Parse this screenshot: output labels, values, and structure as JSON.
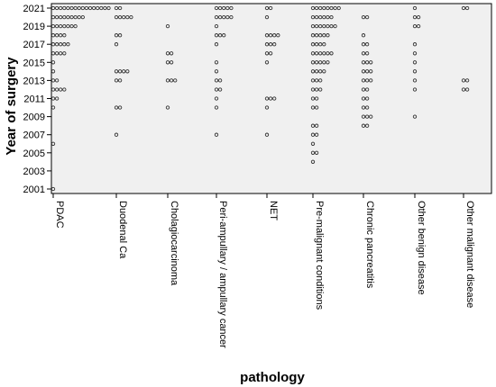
{
  "chart_data": {
    "type": "scatter",
    "subtype": "dot-plot",
    "xlabel": "pathology",
    "ylabel": "Year of surgery",
    "categories": [
      "PDAC",
      "Duodenal Ca",
      "Cholagiocarcinoma",
      "Peri-ampullary / ampullary cancer",
      "NET",
      "Pre-malignant conditions",
      "Chronic pancreatitis",
      "Other benign disease",
      "Other malignant disease"
    ],
    "y_ticks": [
      "2001",
      "2003",
      "2005",
      "2007",
      "2009",
      "2011",
      "2013",
      "2015",
      "2017",
      "2019",
      "2021"
    ],
    "ylim": [
      2000.5,
      2021.5
    ],
    "grid": false,
    "plot_background": "#f0f0f0",
    "marker_color": "#333333",
    "series": [
      {
        "category": "PDAC",
        "points": [
          {
            "year": 2021,
            "count": 16
          },
          {
            "year": 2020,
            "count": 9
          },
          {
            "year": 2019,
            "count": 7
          },
          {
            "year": 2018,
            "count": 4
          },
          {
            "year": 2017,
            "count": 5
          },
          {
            "year": 2016,
            "count": 4
          },
          {
            "year": 2015,
            "count": 1
          },
          {
            "year": 2014,
            "count": 1
          },
          {
            "year": 2013,
            "count": 2
          },
          {
            "year": 2012,
            "count": 4
          },
          {
            "year": 2011,
            "count": 2
          },
          {
            "year": 2010,
            "count": 1
          },
          {
            "year": 2006,
            "count": 1
          },
          {
            "year": 2001,
            "count": 1
          }
        ]
      },
      {
        "category": "Duodenal Ca",
        "points": [
          {
            "year": 2021,
            "count": 2
          },
          {
            "year": 2020,
            "count": 5
          },
          {
            "year": 2018,
            "count": 2
          },
          {
            "year": 2017,
            "count": 1
          },
          {
            "year": 2014,
            "count": 4
          },
          {
            "year": 2013,
            "count": 2
          },
          {
            "year": 2010,
            "count": 2
          },
          {
            "year": 2007,
            "count": 1
          }
        ]
      },
      {
        "category": "Cholagiocarcinoma",
        "points": [
          {
            "year": 2019,
            "count": 1
          },
          {
            "year": 2016,
            "count": 2
          },
          {
            "year": 2015,
            "count": 2
          },
          {
            "year": 2013,
            "count": 3
          },
          {
            "year": 2010,
            "count": 1
          }
        ]
      },
      {
        "category": "Peri-ampullary / ampullary cancer",
        "points": [
          {
            "year": 2021,
            "count": 5
          },
          {
            "year": 2020,
            "count": 5
          },
          {
            "year": 2019,
            "count": 1
          },
          {
            "year": 2018,
            "count": 3
          },
          {
            "year": 2017,
            "count": 1
          },
          {
            "year": 2015,
            "count": 1
          },
          {
            "year": 2014,
            "count": 1
          },
          {
            "year": 2013,
            "count": 2
          },
          {
            "year": 2012,
            "count": 2
          },
          {
            "year": 2011,
            "count": 1
          },
          {
            "year": 2010,
            "count": 1
          },
          {
            "year": 2007,
            "count": 1
          }
        ]
      },
      {
        "category": "NET",
        "points": [
          {
            "year": 2021,
            "count": 2
          },
          {
            "year": 2020,
            "count": 1
          },
          {
            "year": 2018,
            "count": 4
          },
          {
            "year": 2017,
            "count": 3
          },
          {
            "year": 2016,
            "count": 2
          },
          {
            "year": 2015,
            "count": 1
          },
          {
            "year": 2011,
            "count": 3
          },
          {
            "year": 2010,
            "count": 1
          },
          {
            "year": 2007,
            "count": 1
          }
        ]
      },
      {
        "category": "Pre-malignant conditions",
        "points": [
          {
            "year": 2021,
            "count": 8
          },
          {
            "year": 2020,
            "count": 6
          },
          {
            "year": 2019,
            "count": 7
          },
          {
            "year": 2018,
            "count": 5
          },
          {
            "year": 2017,
            "count": 4
          },
          {
            "year": 2016,
            "count": 6
          },
          {
            "year": 2015,
            "count": 5
          },
          {
            "year": 2014,
            "count": 4
          },
          {
            "year": 2013,
            "count": 3
          },
          {
            "year": 2012,
            "count": 3
          },
          {
            "year": 2011,
            "count": 2
          },
          {
            "year": 2010,
            "count": 2
          },
          {
            "year": 2008,
            "count": 2
          },
          {
            "year": 2007,
            "count": 2
          },
          {
            "year": 2006,
            "count": 1
          },
          {
            "year": 2005,
            "count": 2
          },
          {
            "year": 2004,
            "count": 1
          }
        ]
      },
      {
        "category": "Chronic pancreatitis",
        "points": [
          {
            "year": 2020,
            "count": 2
          },
          {
            "year": 2018,
            "count": 1
          },
          {
            "year": 2017,
            "count": 2
          },
          {
            "year": 2016,
            "count": 2
          },
          {
            "year": 2015,
            "count": 3
          },
          {
            "year": 2014,
            "count": 3
          },
          {
            "year": 2013,
            "count": 3
          },
          {
            "year": 2012,
            "count": 2
          },
          {
            "year": 2011,
            "count": 2
          },
          {
            "year": 2010,
            "count": 2
          },
          {
            "year": 2009,
            "count": 3
          },
          {
            "year": 2008,
            "count": 2
          }
        ]
      },
      {
        "category": "Other benign disease",
        "points": [
          {
            "year": 2021,
            "count": 1
          },
          {
            "year": 2020,
            "count": 2
          },
          {
            "year": 2019,
            "count": 2
          },
          {
            "year": 2017,
            "count": 1
          },
          {
            "year": 2016,
            "count": 1
          },
          {
            "year": 2015,
            "count": 1
          },
          {
            "year": 2014,
            "count": 1
          },
          {
            "year": 2013,
            "count": 1
          },
          {
            "year": 2012,
            "count": 1
          },
          {
            "year": 2009,
            "count": 1
          }
        ]
      },
      {
        "category": "Other malignant disease",
        "points": [
          {
            "year": 2021,
            "count": 2
          },
          {
            "year": 2013,
            "count": 2
          },
          {
            "year": 2012,
            "count": 2
          }
        ]
      }
    ]
  }
}
